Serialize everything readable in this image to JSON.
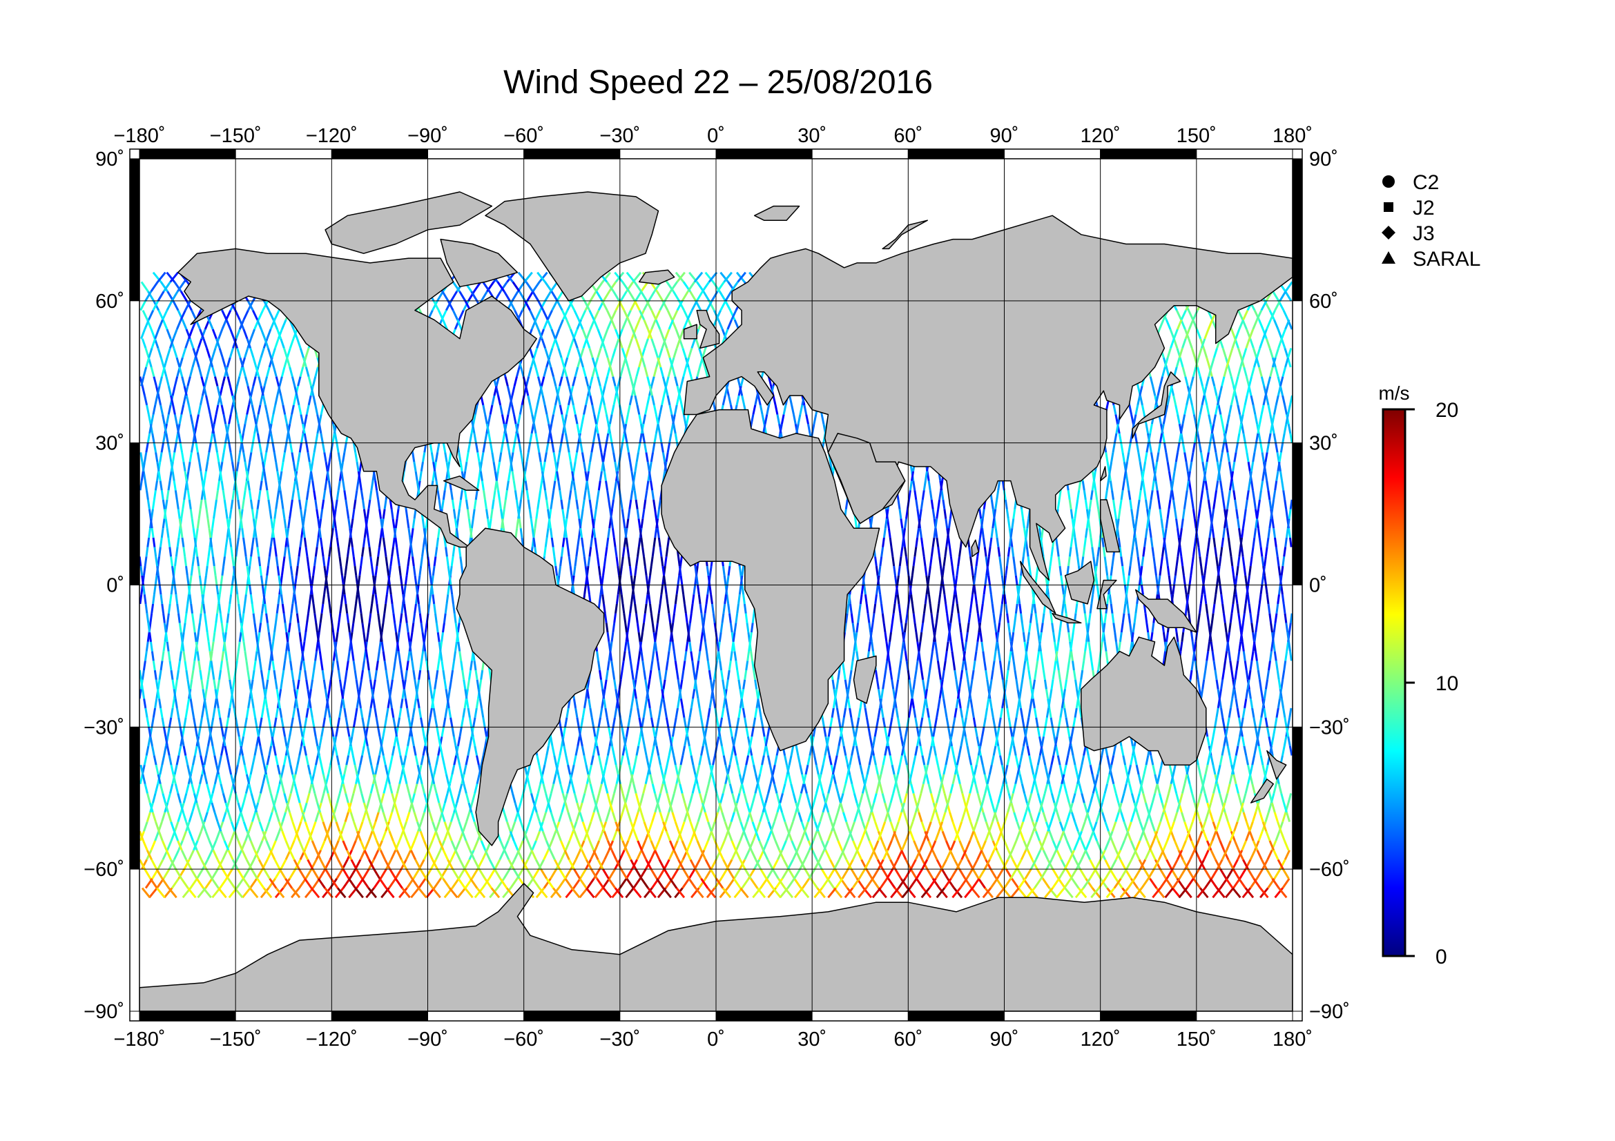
{
  "title": "Wind Speed 22 – 25/08/2016",
  "map": {
    "lon_ticks": [
      -180,
      -150,
      -120,
      -90,
      -60,
      -30,
      0,
      30,
      60,
      90,
      120,
      150,
      180
    ],
    "lat_ticks": [
      90,
      60,
      30,
      0,
      -30,
      -60,
      -90
    ],
    "lon_range": [
      -180,
      180
    ],
    "lat_range": [
      -90,
      90
    ],
    "land_color": "#bebebe",
    "ocean_color": "#ffffff",
    "frame_colors": [
      "#000000",
      "#ffffff"
    ]
  },
  "legend": {
    "items": [
      {
        "label": "C2",
        "symbol": "circle-icon"
      },
      {
        "label": "J2",
        "symbol": "square-icon"
      },
      {
        "label": "J3",
        "symbol": "diamond-icon"
      },
      {
        "label": "SARAL",
        "symbol": "triangle-icon"
      }
    ]
  },
  "colorbar": {
    "unit": "m/s",
    "min": 0,
    "max": 20,
    "ticks": [
      0,
      10,
      20
    ],
    "colors": [
      "#00007f",
      "#0000ff",
      "#007fff",
      "#00ffff",
      "#7fff7f",
      "#ffff00",
      "#ff7f00",
      "#ff0000",
      "#7f0000"
    ]
  }
}
